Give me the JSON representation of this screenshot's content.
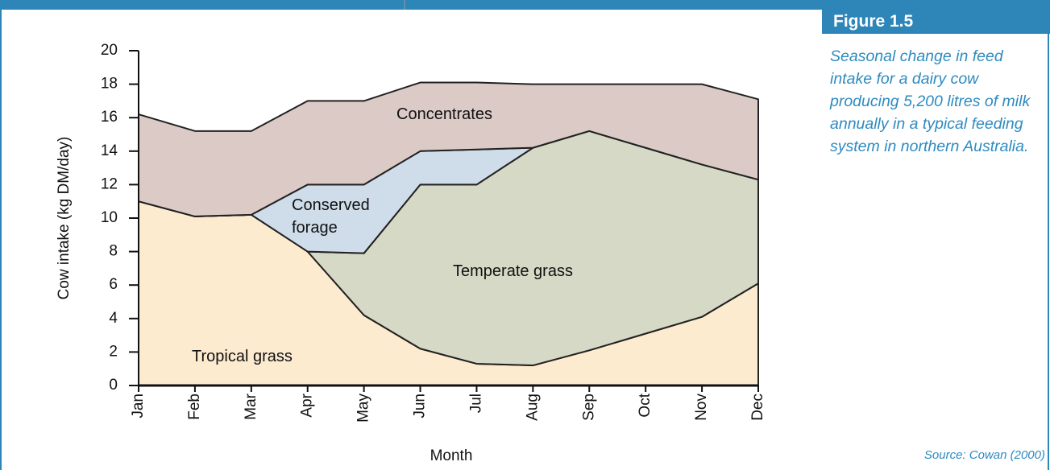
{
  "figure_label": "Figure 1.5",
  "caption": "Seasonal change in feed intake for a dairy cow producing 5,200 litres of milk annually in a typical feeding system in northern Australia.",
  "source": "Source: Cowan (2000)",
  "chart_data": {
    "type": "stacked_area",
    "x_label": "Month",
    "y_label": "Cow intake (kg DM/day)",
    "categories": [
      "Jan",
      "Feb",
      "Mar",
      "Apr",
      "May",
      "Jun",
      "Jul",
      "Aug",
      "Sep",
      "Oct",
      "Nov",
      "Dec"
    ],
    "series": [
      {
        "name": "Tropical grass",
        "color": "#fdebd0",
        "values": [
          11,
          10.1,
          10.2,
          8,
          4.2,
          2.2,
          1.3,
          1.2,
          2.1,
          3.1,
          4.1,
          6.1
        ]
      },
      {
        "name": "Temperate grass",
        "color": "#d6d9c5",
        "values": [
          0,
          0,
          0,
          0,
          3.7,
          9.8,
          10.7,
          13,
          13.1,
          11.1,
          9.1,
          6.2
        ]
      },
      {
        "name": "Conserved forage",
        "color": "#cfdcea",
        "values": [
          0,
          0,
          0,
          4,
          4.1,
          2,
          2.1,
          0,
          0,
          0,
          0,
          0
        ]
      },
      {
        "name": "Concentrates",
        "color": "#dccac7",
        "values": [
          5.2,
          5.1,
          5,
          5,
          5,
          4.1,
          4,
          3.8,
          2.8,
          3.8,
          4.8,
          4.8
        ]
      }
    ],
    "ylim": [
      0,
      20
    ],
    "yticks": [
      0,
      2,
      4,
      6,
      8,
      10,
      12,
      14,
      16,
      18,
      20
    ],
    "grid": false
  }
}
